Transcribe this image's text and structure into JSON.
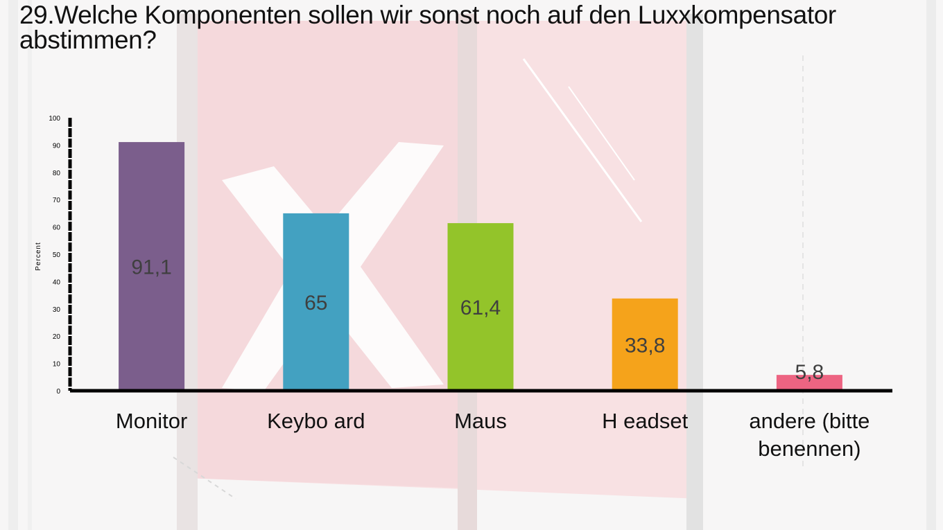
{
  "slide": {
    "title": "29.Welche Komponenten sollen wir sonst noch auf den Luxxkompensator abstimmen?"
  },
  "chart_data": {
    "type": "bar",
    "title": "29.Welche Komponenten sollen wir sonst noch auf den Luxxkompensator abstimmen?",
    "xlabel": "",
    "ylabel": "Percent",
    "ylim": [
      0,
      100
    ],
    "yticks": [
      0,
      10,
      20,
      30,
      40,
      50,
      60,
      70,
      80,
      90,
      100
    ],
    "grid": false,
    "legend": "none",
    "categories": [
      "Monitor",
      "Keybo ard",
      "Maus",
      "H eadset",
      "andere (bitte benennen)"
    ],
    "category_lines": [
      [
        "Monitor"
      ],
      [
        "Keybo ard"
      ],
      [
        "Maus"
      ],
      [
        "H eadset"
      ],
      [
        "andere (bitte",
        "benennen)"
      ]
    ],
    "values": [
      91.1,
      65,
      61.4,
      33.8,
      5.8
    ],
    "value_labels": [
      "91,1",
      "65",
      "61,4",
      "33,8",
      "5,8"
    ],
    "colors": [
      "#7b5e8c",
      "#43a1c1",
      "#93c42a",
      "#f5a31b",
      "#ed6482"
    ]
  }
}
